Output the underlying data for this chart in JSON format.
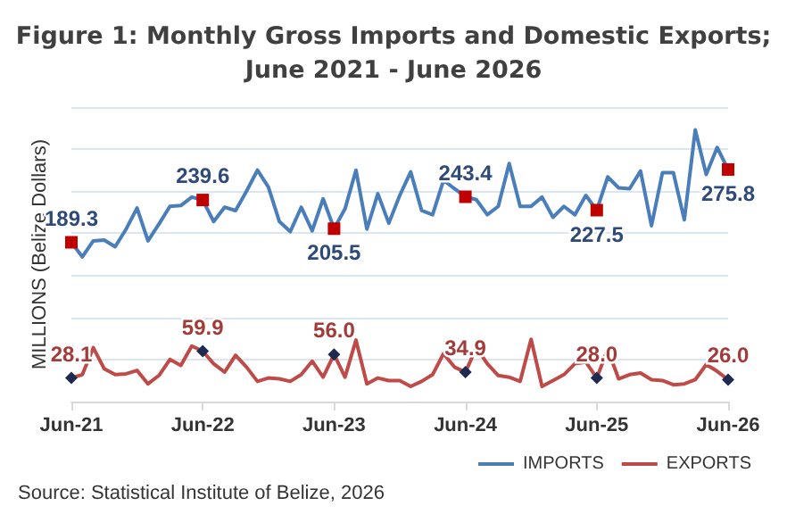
{
  "chart_data": {
    "type": "line",
    "title": "Figure 1: Monthly Gross Imports and Domestic Exports;\nJune 2021 - June 2026",
    "ylabel": "MILLIONS (Belize Dollars)",
    "annotations": [
      "Source: Statistical Institute of Belize, 2026"
    ],
    "categories": [
      "Jun-21",
      null,
      null,
      null,
      null,
      null,
      null,
      null,
      null,
      null,
      null,
      null,
      "Jun-22",
      null,
      null,
      null,
      null,
      null,
      null,
      null,
      null,
      null,
      null,
      null,
      "Jun-23",
      null,
      null,
      null,
      null,
      null,
      null,
      null,
      null,
      null,
      null,
      null,
      "Jun-24",
      null,
      null,
      null,
      null,
      null,
      null,
      null,
      null,
      null,
      null,
      null,
      "Jun-25",
      null,
      null,
      null,
      null,
      null,
      null,
      null,
      null,
      null,
      null,
      null,
      "Jun-26"
    ],
    "series": [
      {
        "name": "IMPORTS",
        "color": "#4a7ebb",
        "values": [
          189.3,
          172,
          191,
          192,
          184,
          205,
          230,
          191,
          211,
          232,
          233,
          243,
          239.6,
          214,
          231,
          227,
          250,
          275,
          255,
          214,
          202,
          231,
          203,
          241,
          205.5,
          229,
          275,
          205,
          247,
          212,
          245,
          273,
          227,
          222,
          263,
          253,
          243.4,
          240,
          222,
          232,
          283,
          232,
          232,
          243,
          219,
          232,
          222,
          245,
          227.5,
          267,
          254,
          253,
          274,
          209,
          272,
          272,
          216,
          323,
          270,
          302,
          275.8
        ],
        "value_labels": [
          "189.3",
          null,
          null,
          null,
          null,
          null,
          null,
          null,
          null,
          null,
          null,
          null,
          "239.6",
          null,
          null,
          null,
          null,
          null,
          null,
          null,
          null,
          null,
          null,
          null,
          "205.5",
          null,
          null,
          null,
          null,
          null,
          null,
          null,
          null,
          null,
          null,
          null,
          "243.4",
          null,
          null,
          null,
          null,
          null,
          null,
          null,
          null,
          null,
          null,
          null,
          "227.5",
          null,
          null,
          null,
          null,
          null,
          null,
          null,
          null,
          null,
          null,
          null,
          "275.8"
        ]
      },
      {
        "name": "EXPORTS",
        "color": "#be4b48",
        "values": [
          28.1,
          32,
          64,
          39,
          32,
          33,
          37,
          21,
          31,
          50,
          43,
          66,
          59.9,
          45,
          35,
          55,
          41,
          24,
          28,
          27,
          24,
          32,
          48,
          29,
          56.0,
          29,
          73,
          21,
          28,
          25,
          25,
          18,
          24,
          32,
          57,
          41,
          34.9,
          64,
          45,
          31,
          29,
          24,
          74,
          18,
          25,
          32,
          45,
          47,
          28.0,
          62,
          27,
          32,
          34,
          26,
          25,
          20,
          21,
          26,
          44,
          36,
          26.0
        ],
        "value_labels": [
          "28.1",
          null,
          null,
          null,
          null,
          null,
          null,
          null,
          null,
          null,
          null,
          null,
          "59.9",
          null,
          null,
          null,
          null,
          null,
          null,
          null,
          null,
          null,
          null,
          null,
          "56.0",
          null,
          null,
          null,
          null,
          null,
          null,
          null,
          null,
          null,
          null,
          null,
          "34.9",
          null,
          null,
          null,
          null,
          null,
          null,
          null,
          null,
          null,
          null,
          null,
          "28.0",
          null,
          null,
          null,
          null,
          null,
          null,
          null,
          null,
          null,
          null,
          null,
          "26.0"
        ]
      }
    ],
    "ylim": [
      0,
      350
    ],
    "yticks": [
      {
        "value": 0,
        "label": null
      },
      {
        "value": 50,
        "label": null
      },
      {
        "value": 100,
        "label": null
      },
      {
        "value": 150,
        "label": null
      },
      {
        "value": 200,
        "label": null
      },
      {
        "value": 250,
        "label": null
      },
      {
        "value": 300,
        "label": null
      },
      {
        "value": 350,
        "label": null
      }
    ],
    "tick_labels": "x",
    "grid": "y",
    "legend": "bottom right",
    "line_style": "solid"
  }
}
